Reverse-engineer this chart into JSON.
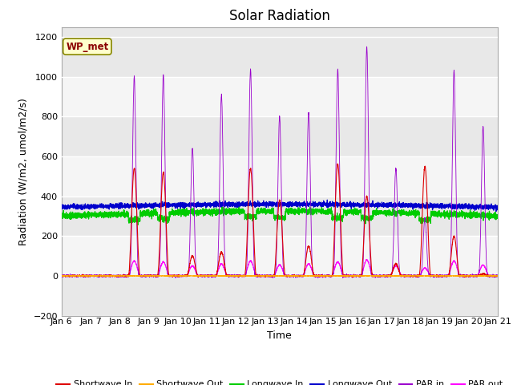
{
  "title": "Solar Radiation",
  "ylabel": "Radiation (W/m2, umol/m2/s)",
  "xlabel": "Time",
  "ylim": [
    -200,
    1250
  ],
  "yticks": [
    -200,
    0,
    200,
    400,
    600,
    800,
    1000,
    1200
  ],
  "xlim": [
    0,
    15
  ],
  "xtick_labels": [
    "Jan 6",
    "Jan 7",
    "Jan 8",
    "Jan 9",
    "Jan 10",
    "Jan 11",
    "Jan 12",
    "Jan 13",
    "Jan 14",
    "Jan 15",
    "Jan 16",
    "Jan 17",
    "Jan 18",
    "Jan 19",
    "Jan 20",
    "Jan 21"
  ],
  "legend_label": "WP_met",
  "series": {
    "shortwave_in": {
      "color": "#dd0000",
      "label": "Shortwave In"
    },
    "shortwave_out": {
      "color": "#ffaa00",
      "label": "Shortwave Out"
    },
    "longwave_in": {
      "color": "#00cc00",
      "label": "Longwave In"
    },
    "longwave_out": {
      "color": "#0000cc",
      "label": "Longwave Out"
    },
    "par_in": {
      "color": "#9900cc",
      "label": "PAR in"
    },
    "par_out": {
      "color": "#ff00ff",
      "label": "PAR out"
    }
  },
  "bg_bands": [
    {
      "ymin": -200,
      "ymax": 0,
      "color": "#e8e8e8"
    },
    {
      "ymin": 0,
      "ymax": 200,
      "color": "#f5f5f5"
    },
    {
      "ymin": 200,
      "ymax": 400,
      "color": "#e8e8e8"
    },
    {
      "ymin": 400,
      "ymax": 600,
      "color": "#f5f5f5"
    },
    {
      "ymin": 600,
      "ymax": 800,
      "color": "#e8e8e8"
    },
    {
      "ymin": 800,
      "ymax": 1000,
      "color": "#f5f5f5"
    },
    {
      "ymin": 1000,
      "ymax": 1250,
      "color": "#e8e8e8"
    }
  ],
  "title_fontsize": 12,
  "label_fontsize": 9,
  "tick_fontsize": 8
}
